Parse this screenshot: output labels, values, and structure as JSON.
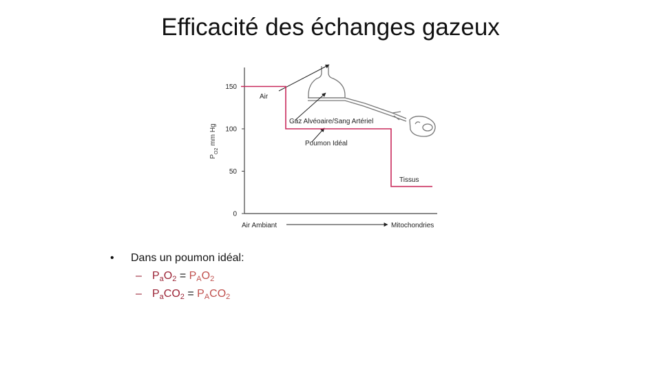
{
  "slide": {
    "title": "Efficacité des échanges gazeux"
  },
  "chart_data": {
    "type": "line",
    "ylabel_main": "P",
    "ylabel_sub": "O2",
    "ylabel_unit": "mm Hg",
    "yticks": [
      "150",
      "100",
      "50",
      "0"
    ],
    "ylim": [
      0,
      170
    ],
    "x_start_label": "Air Ambiant",
    "x_end_label": "Mitochondries",
    "series": [
      {
        "values": [
          150,
          100,
          32
        ]
      }
    ],
    "annotations": {
      "air": "Air",
      "alveolar": "Gaz Alvéoaire/Sang Artériel",
      "ideal_lung": "Poumon Idéal",
      "tissue": "Tissus"
    },
    "line_color": "#c8285a"
  },
  "bullets": {
    "main": "Dans un poumon idéal:",
    "dot": "•",
    "dash": "–",
    "item1": {
      "left_base": "P",
      "left_sub": "a",
      "left_rest": "O",
      "left_sub2": "2",
      "eq": " = ",
      "right_base": "P",
      "right_sub": "A",
      "right_rest": "O",
      "right_sub2": "2"
    },
    "item2": {
      "left_base": "P",
      "left_sub": "a",
      "left_rest": "CO",
      "left_sub2": "2",
      "eq": " = ",
      "right_base": "P",
      "right_sub": "A",
      "right_rest": "CO",
      "right_sub2": "2"
    }
  }
}
